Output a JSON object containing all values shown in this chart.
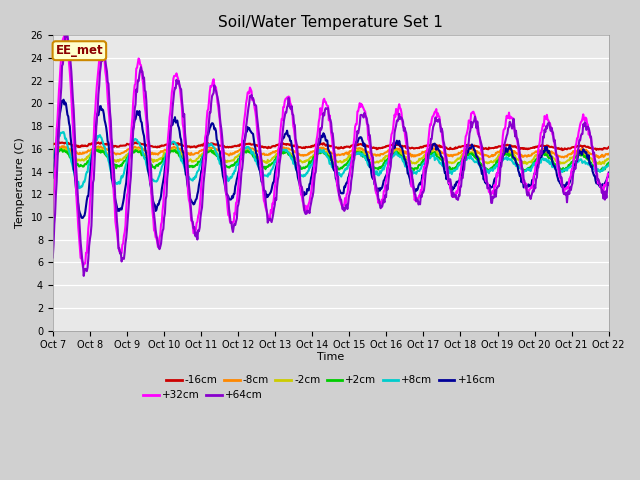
{
  "title": "Soil/Water Temperature Set 1",
  "xlabel": "Time",
  "ylabel": "Temperature (C)",
  "ylim": [
    0,
    26
  ],
  "yticks": [
    0,
    2,
    4,
    6,
    8,
    10,
    12,
    14,
    16,
    18,
    20,
    22,
    24,
    26
  ],
  "x_labels": [
    "Oct 7",
    "Oct 8",
    "Oct 9",
    "Oct 10",
    "Oct 11",
    "Oct 12",
    "Oct 13",
    "Oct 14",
    "Oct 15",
    "Oct 16",
    "Oct 17",
    "Oct 18",
    "Oct 19",
    "Oct 20",
    "Oct 21",
    "Oct 22"
  ],
  "annotation_text": "EE_met",
  "annotation_bg": "#ffffcc",
  "annotation_border": "#cc8800",
  "fig_bg": "#d0d0d0",
  "plot_bg": "#e8e8e8",
  "series": [
    {
      "label": "-16cm",
      "color": "#cc0000",
      "lw": 1.5
    },
    {
      "label": "-8cm",
      "color": "#ff8800",
      "lw": 1.5
    },
    {
      "label": "-2cm",
      "color": "#cccc00",
      "lw": 1.5
    },
    {
      "label": "+2cm",
      "color": "#00cc00",
      "lw": 1.5
    },
    {
      "label": "+8cm",
      "color": "#00cccc",
      "lw": 1.5
    },
    {
      "label": "+16cm",
      "color": "#000099",
      "lw": 1.5
    },
    {
      "label": "+32cm",
      "color": "#ff00ff",
      "lw": 1.5
    },
    {
      "label": "+64cm",
      "color": "#8800cc",
      "lw": 1.5
    }
  ],
  "legend_ncol1": 6,
  "legend_ncol2": 2
}
